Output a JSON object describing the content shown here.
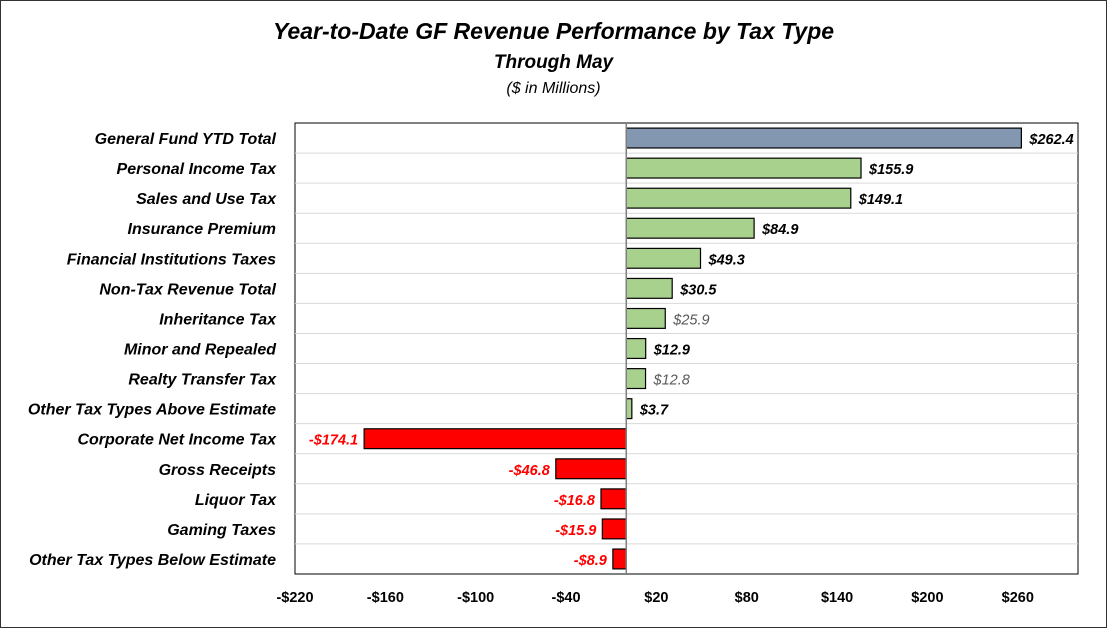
{
  "chart_data": {
    "type": "bar",
    "orientation": "horizontal",
    "title": "Year-to-Date GF Revenue Performance by Tax Type",
    "subtitle": "Through May",
    "units": "($ in Millions)",
    "xlim": [
      -220,
      300
    ],
    "x_ticks": [
      -220,
      -160,
      -100,
      -40,
      20,
      80,
      140,
      200,
      260
    ],
    "x_tick_labels": [
      "-$220",
      "-$160",
      "-$100",
      "-$40",
      "$20",
      "$80",
      "$140",
      "$200",
      "$260"
    ],
    "grid": "horizontal",
    "categories": [
      "General Fund YTD Total",
      "Personal Income Tax",
      "Sales and Use Tax",
      "Insurance Premium",
      "Financial Institutions Taxes",
      "Non-Tax Revenue Total",
      "Inheritance Tax",
      "Minor and Repealed",
      "Realty Transfer Tax",
      "Other Tax Types Above Estimate",
      "Corporate Net Income Tax",
      "Gross Receipts",
      "Liquor Tax",
      "Gaming Taxes",
      "Other Tax Types Below Estimate"
    ],
    "values": [
      262.4,
      155.9,
      149.1,
      84.9,
      49.3,
      30.5,
      25.9,
      12.9,
      12.8,
      3.7,
      -174.1,
      -46.8,
      -16.8,
      -15.9,
      -8.9
    ],
    "data_labels": [
      "$262.4",
      "$155.9",
      "$149.1",
      "$84.9",
      "$49.3",
      "$30.5",
      "$25.9",
      "$12.9",
      "$12.8",
      "$3.7",
      "-$174.1",
      "-$46.8",
      "-$16.8",
      "-$15.9",
      "-$8.9"
    ],
    "bar_colors": [
      "#8497b0",
      "#a9d18e",
      "#a9d18e",
      "#a9d18e",
      "#a9d18e",
      "#a9d18e",
      "#a9d18e",
      "#a9d18e",
      "#a9d18e",
      "#a9d18e",
      "#ff0000",
      "#ff0000",
      "#ff0000",
      "#ff0000",
      "#ff0000"
    ],
    "label_colors": [
      "#000000",
      "#000000",
      "#000000",
      "#000000",
      "#000000",
      "#000000",
      "#595959",
      "#000000",
      "#595959",
      "#000000",
      "#ff0000",
      "#ff0000",
      "#ff0000",
      "#ff0000",
      "#ff0000"
    ]
  }
}
